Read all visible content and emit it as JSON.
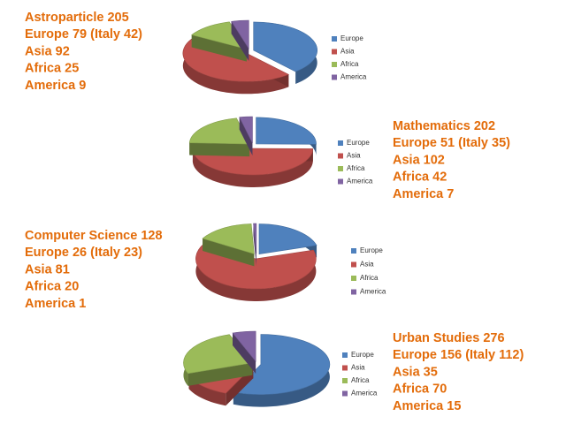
{
  "chart_data": [
    {
      "type": "pie",
      "annotations": [
        "Astroparticle 205",
        "Europe 79 (Italy 42)",
        "Asia 92",
        "Africa 25",
        "America 9"
      ],
      "categories": [
        "Europe",
        "Asia",
        "Africa",
        "America"
      ],
      "values": [
        79,
        92,
        25,
        9
      ],
      "colors": [
        "#4f81bd",
        "#c0504d",
        "#9bbb59",
        "#8064a2"
      ]
    },
    {
      "type": "pie",
      "annotations": [
        "Mathematics 202",
        "Europe 51 (Italy 35)",
        "Asia 102",
        "Africa 42",
        "America 7"
      ],
      "categories": [
        "Europe",
        "Asia",
        "Africa",
        "America"
      ],
      "values": [
        51,
        102,
        42,
        7
      ],
      "colors": [
        "#4f81bd",
        "#c0504d",
        "#9bbb59",
        "#8064a2"
      ]
    },
    {
      "type": "pie",
      "annotations": [
        "Computer Science 128",
        "Europe 26 (Italy 23)",
        "Asia 81",
        "Africa 20",
        "America 1"
      ],
      "categories": [
        "Europe",
        "Asia",
        "Africa",
        "America"
      ],
      "values": [
        26,
        81,
        20,
        1
      ],
      "colors": [
        "#4f81bd",
        "#c0504d",
        "#9bbb59",
        "#8064a2"
      ]
    },
    {
      "type": "pie",
      "annotations": [
        "Urban Studies 276",
        "Europe 156 (Italy 112)",
        "Asia 35",
        "Africa 70",
        "America 15"
      ],
      "categories": [
        "Europe",
        "Asia",
        "Africa",
        "America"
      ],
      "values": [
        156,
        35,
        70,
        15
      ],
      "colors": [
        "#4f81bd",
        "#c0504d",
        "#9bbb59",
        "#8064a2"
      ]
    }
  ]
}
